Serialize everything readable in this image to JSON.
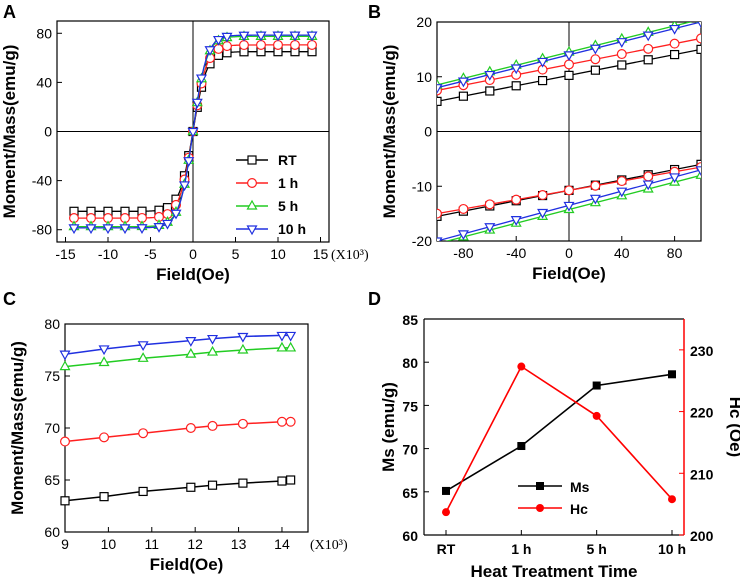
{
  "colors": {
    "RT": "#000000",
    "1 h": "#ff2020",
    "5 h": "#22cc22",
    "10 h": "#2030e0",
    "hc_axis": "#ff0000"
  },
  "chart_data": [
    {
      "panel": "A",
      "type": "line",
      "xlabel": "Field(Oe)",
      "ylabel": "Moment/Mass(emu/g)",
      "x_multiplier": "(X10³)",
      "xlim": [
        -16,
        16
      ],
      "ylim": [
        -90,
        90
      ],
      "xticks": [
        -15,
        -10,
        -5,
        0,
        5,
        10,
        15
      ],
      "yticks": [
        -80,
        -40,
        0,
        40,
        80
      ],
      "xtick_labels": [
        "-15",
        "-10",
        "-5",
        "0",
        "5",
        "10",
        "15"
      ],
      "ytick_labels": [
        "-80",
        "-40",
        "0",
        "40",
        "80"
      ],
      "legend": [
        "RT",
        "1 h",
        "5 h",
        "10 h"
      ],
      "series": [
        {
          "name": "RT",
          "ms": 65,
          "marker": "square"
        },
        {
          "name": "1 h",
          "ms": 70.5,
          "marker": "circle"
        },
        {
          "name": "5 h",
          "ms": 77.5,
          "marker": "triangle-up"
        },
        {
          "name": "10 h",
          "ms": 78.5,
          "marker": "triangle-down"
        }
      ]
    },
    {
      "panel": "B",
      "type": "line",
      "xlabel": "Field(Oe)",
      "ylabel": "Moment/Mass(emu/g)",
      "xlim": [
        -100,
        100
      ],
      "ylim": [
        -20,
        20
      ],
      "xticks": [
        -80,
        -40,
        0,
        40,
        80
      ],
      "yticks": [
        -20,
        -10,
        0,
        10,
        20
      ],
      "xtick_labels": [
        "-80",
        "-40",
        "0",
        "40",
        "80"
      ],
      "ytick_labels": [
        "-20",
        "-10",
        "0",
        "10",
        "20"
      ],
      "series": [
        {
          "name": "RT",
          "upper": [
            [
              -100,
              5.5
            ],
            [
              100,
              15
            ]
          ],
          "lower": [
            [
              -100,
              -15.5
            ],
            [
              100,
              -6
            ]
          ],
          "marker": "square"
        },
        {
          "name": "1 h",
          "upper": [
            [
              -100,
              7.5
            ],
            [
              100,
              17
            ]
          ],
          "lower": [
            [
              -100,
              -15
            ],
            [
              100,
              -6.5
            ]
          ],
          "marker": "circle"
        },
        {
          "name": "5 h",
          "upper": [
            [
              -100,
              8.5
            ],
            [
              100,
              20.5
            ]
          ],
          "lower": [
            [
              -100,
              -20.5
            ],
            [
              100,
              -8
            ]
          ],
          "marker": "triangle-up"
        },
        {
          "name": "10 h",
          "upper": [
            [
              -100,
              8
            ],
            [
              100,
              20
            ]
          ],
          "lower": [
            [
              -100,
              -20
            ],
            [
              100,
              -7
            ]
          ],
          "marker": "triangle-down"
        }
      ]
    },
    {
      "panel": "C",
      "type": "line",
      "xlabel": "Field(Oe)",
      "ylabel": "Moment/Mass(emu/g)",
      "x_multiplier": "(X10³)",
      "xlim": [
        9,
        14.6
      ],
      "ylim": [
        60,
        80
      ],
      "xticks": [
        9,
        10,
        11,
        12,
        13,
        14
      ],
      "yticks": [
        60,
        65,
        70,
        75,
        80
      ],
      "xtick_labels": [
        "9",
        "10",
        "11",
        "12",
        "13",
        "14"
      ],
      "ytick_labels": [
        "60",
        "65",
        "70",
        "75",
        "80"
      ],
      "series": [
        {
          "name": "RT",
          "x": [
            9,
            9.9,
            10.8,
            11.9,
            12.4,
            13.1,
            14,
            14.2
          ],
          "y": [
            63,
            63.4,
            63.9,
            64.3,
            64.5,
            64.7,
            64.9,
            65
          ],
          "marker": "square"
        },
        {
          "name": "1 h",
          "x": [
            9,
            9.9,
            10.8,
            11.9,
            12.4,
            13.1,
            14,
            14.2
          ],
          "y": [
            68.7,
            69.1,
            69.5,
            70,
            70.2,
            70.4,
            70.6,
            70.6
          ],
          "marker": "circle"
        },
        {
          "name": "5 h",
          "x": [
            9,
            9.9,
            10.8,
            11.9,
            12.4,
            13.1,
            14,
            14.2
          ],
          "y": [
            75.9,
            76.3,
            76.7,
            77.1,
            77.3,
            77.5,
            77.7,
            77.7
          ],
          "marker": "triangle-up"
        },
        {
          "name": "10 h",
          "x": [
            9,
            9.9,
            10.8,
            11.9,
            12.4,
            13.1,
            14,
            14.2
          ],
          "y": [
            77.1,
            77.6,
            78,
            78.4,
            78.6,
            78.8,
            78.9,
            78.9
          ],
          "marker": "triangle-down"
        }
      ]
    },
    {
      "panel": "D",
      "type": "line",
      "xlabel": "Heat Treatment Time",
      "ylabel": "Ms (emu/g)",
      "y2label": "Hc (Oe)",
      "categories": [
        "RT",
        "1 h",
        "5 h",
        "10 h"
      ],
      "ylim": [
        60,
        85
      ],
      "y2lim": [
        200,
        235
      ],
      "yticks": [
        60,
        65,
        70,
        75,
        80,
        85
      ],
      "ytick_labels": [
        "60",
        "65",
        "70",
        "75",
        "80",
        "85"
      ],
      "y2ticks": [
        200,
        210,
        220,
        230
      ],
      "y2tick_labels": [
        "200",
        "210",
        "220",
        "230"
      ],
      "legend": [
        "Ms",
        "Hc"
      ],
      "series": [
        {
          "name": "Ms",
          "axis": "left",
          "values": [
            65.1,
            70.3,
            77.3,
            78.6
          ],
          "color": "#000000",
          "marker": "square"
        },
        {
          "name": "Hc",
          "axis": "right",
          "values": [
            203.7,
            227.3,
            219.3,
            205.8
          ],
          "color": "#ff0000",
          "marker": "circle"
        }
      ]
    }
  ]
}
